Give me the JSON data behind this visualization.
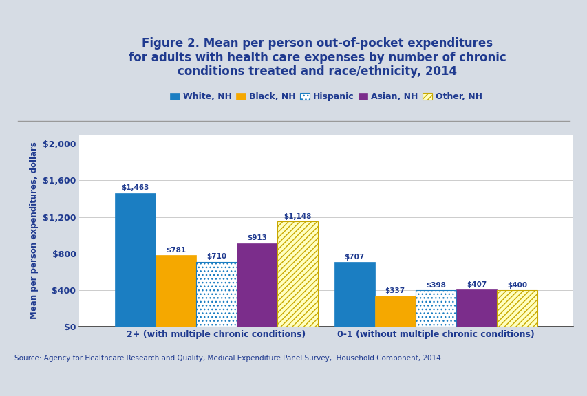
{
  "title": "Figure 2. Mean per person out-of-pocket expenditures\nfor adults with health care expenses by number of chronic\nconditions treated and race/ethnicity, 2014",
  "ylabel": "Mean per person expenditures, dollars",
  "categories": [
    "2+ (with multiple chronic conditions)",
    "0-1 (without multiple chronic conditions)"
  ],
  "series_labels": [
    "White, NH",
    "Black, NH",
    "Hispanic",
    "Asian, NH",
    "Other, NH"
  ],
  "values": [
    [
      1463,
      781,
      710,
      913,
      1148
    ],
    [
      707,
      337,
      398,
      407,
      400
    ]
  ],
  "bar_colors": [
    "#1B7EC2",
    "#F5A800",
    "#FFFFFF",
    "#7B2D8B",
    "#FFFFA0"
  ],
  "bar_edge_colors": [
    "#1B7EC2",
    "#F5A800",
    "#1B7EC2",
    "#7B2D8B",
    "#C8A800"
  ],
  "yticks": [
    0,
    400,
    800,
    1200,
    1600,
    2000
  ],
  "ytick_labels": [
    "$0",
    "$400",
    "$800",
    "$1,200",
    "$1,600",
    "$2,000"
  ],
  "ylim": [
    0,
    2100
  ],
  "header_bg": "#D6DCE4",
  "plot_bg": "#FFFFFF",
  "bottom_bg": "#FFFFFF",
  "title_color": "#1F3A8F",
  "axis_label_color": "#1F3A8F",
  "tick_label_color": "#1F3A8F",
  "value_label_color": "#1F3A8F",
  "legend_label_color": "#1F3A8F",
  "source_text": "Source: Agency for Healthcare Research and Quality, Medical Expenditure Panel Survey,  Household Component, 2014",
  "title_fontsize": 12,
  "axis_label_fontsize": 8.5,
  "tick_fontsize": 9,
  "value_label_fontsize": 7.5,
  "legend_fontsize": 9,
  "separator_color": "#999999"
}
